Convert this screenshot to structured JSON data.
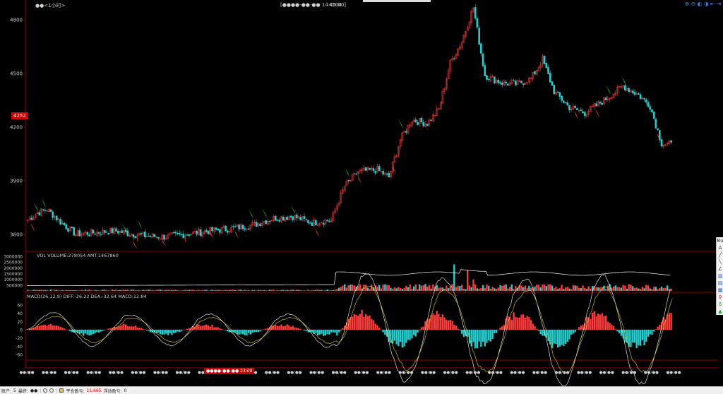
{
  "header": {
    "period_label": "●●<1小时>",
    "crosshair_time": "[●●●●-●●-●● 14:45:00]",
    "crosshair_value": "4104"
  },
  "zoom_tools": [
    "⊕",
    "⊖",
    "◐",
    "◑",
    "⇤",
    "⇥"
  ],
  "price_tag": "4252",
  "date_tag": "●●●●-●●-●● 23:00",
  "volume_panel": {
    "label": "VOL  VOLUME:278054 AMT:1467860",
    "ticks": [
      "3000000",
      "2500000",
      "2000000",
      "1500000",
      "1000000",
      "500000"
    ]
  },
  "macd_panel": {
    "label": "MACD(26,12,9)  DIFF:-26.22  DEA:-32.64  MACD:12.84",
    "ticks": [
      "60",
      "40",
      "20",
      "0",
      "-20",
      "-40",
      "-60"
    ]
  },
  "price_axis_ticks": [
    "4800",
    "4500",
    "4200",
    "3900",
    "3600"
  ],
  "x_axis_labels": [
    "●●/●●",
    "●●/●●",
    "●●/●●",
    "●●/●●",
    "●●/●●",
    "●●/●●",
    "●●/●●",
    "●●/●●",
    "●●/●●",
    "●●/●●",
    "●●/●●",
    "●●/●●",
    "●●/●●",
    "●●/●●",
    "●●/●●",
    "●●/●●",
    "●●/●●",
    "●●/●●",
    "●●/●●",
    "●●/●●",
    "●●/●●",
    "●●/●●",
    "●●/●●",
    "●●/●●",
    "●●/●●",
    "●●/●●",
    "●●/●●",
    "●●/●●",
    "●●/●●",
    "●●/●●"
  ],
  "side_toolbar": [
    "Bu",
    "A",
    "╱",
    "╲",
    "∠",
    "▥",
    "▤",
    "▦",
    "♀",
    "♁",
    "▲"
  ],
  "statusbar": {
    "account_label": "账户:",
    "account_value": "5",
    "direction_label": "最终:",
    "direction_value": "●●",
    "open_label": "平仓盈亏:",
    "open_value": "11,665",
    "float_label": "浮动盈亏:",
    "float_value": "0"
  },
  "colors": {
    "up": "#ff3b3b",
    "down": "#20d0d0",
    "line": "#ffffff",
    "dea": "#e6d21e",
    "separator": "#8a0000",
    "buy_arrow": "#22c422",
    "sell_arrow": "#ff5a2a"
  },
  "chart_data": {
    "type": "candlestick",
    "price_series_keypoints": [
      {
        "i": 0,
        "v": 3680
      },
      {
        "i": 5,
        "v": 3720
      },
      {
        "i": 10,
        "v": 3740
      },
      {
        "i": 18,
        "v": 3660
      },
      {
        "i": 25,
        "v": 3600
      },
      {
        "i": 35,
        "v": 3610
      },
      {
        "i": 45,
        "v": 3620
      },
      {
        "i": 55,
        "v": 3600
      },
      {
        "i": 62,
        "v": 3590
      },
      {
        "i": 72,
        "v": 3585
      },
      {
        "i": 82,
        "v": 3600
      },
      {
        "i": 95,
        "v": 3620
      },
      {
        "i": 105,
        "v": 3630
      },
      {
        "i": 118,
        "v": 3655
      },
      {
        "i": 128,
        "v": 3690
      },
      {
        "i": 138,
        "v": 3700
      },
      {
        "i": 148,
        "v": 3665
      },
      {
        "i": 158,
        "v": 3680
      },
      {
        "i": 165,
        "v": 3870
      },
      {
        "i": 172,
        "v": 3950
      },
      {
        "i": 182,
        "v": 3960
      },
      {
        "i": 188,
        "v": 3920
      },
      {
        "i": 194,
        "v": 4130
      },
      {
        "i": 200,
        "v": 4240
      },
      {
        "i": 208,
        "v": 4220
      },
      {
        "i": 214,
        "v": 4300
      },
      {
        "i": 220,
        "v": 4560
      },
      {
        "i": 226,
        "v": 4680
      },
      {
        "i": 232,
        "v": 4870
      },
      {
        "i": 238,
        "v": 4490
      },
      {
        "i": 246,
        "v": 4450
      },
      {
        "i": 254,
        "v": 4440
      },
      {
        "i": 262,
        "v": 4470
      },
      {
        "i": 268,
        "v": 4580
      },
      {
        "i": 274,
        "v": 4400
      },
      {
        "i": 282,
        "v": 4310
      },
      {
        "i": 290,
        "v": 4280
      },
      {
        "i": 300,
        "v": 4350
      },
      {
        "i": 310,
        "v": 4430
      },
      {
        "i": 318,
        "v": 4380
      },
      {
        "i": 324,
        "v": 4320
      },
      {
        "i": 330,
        "v": 4110
      },
      {
        "i": 335,
        "v": 4100
      }
    ],
    "count": 336,
    "ylim": [
      3520,
      4880
    ],
    "volume_ylim": [
      0,
      3000000
    ],
    "macd_ylim": [
      -70,
      70
    ]
  }
}
